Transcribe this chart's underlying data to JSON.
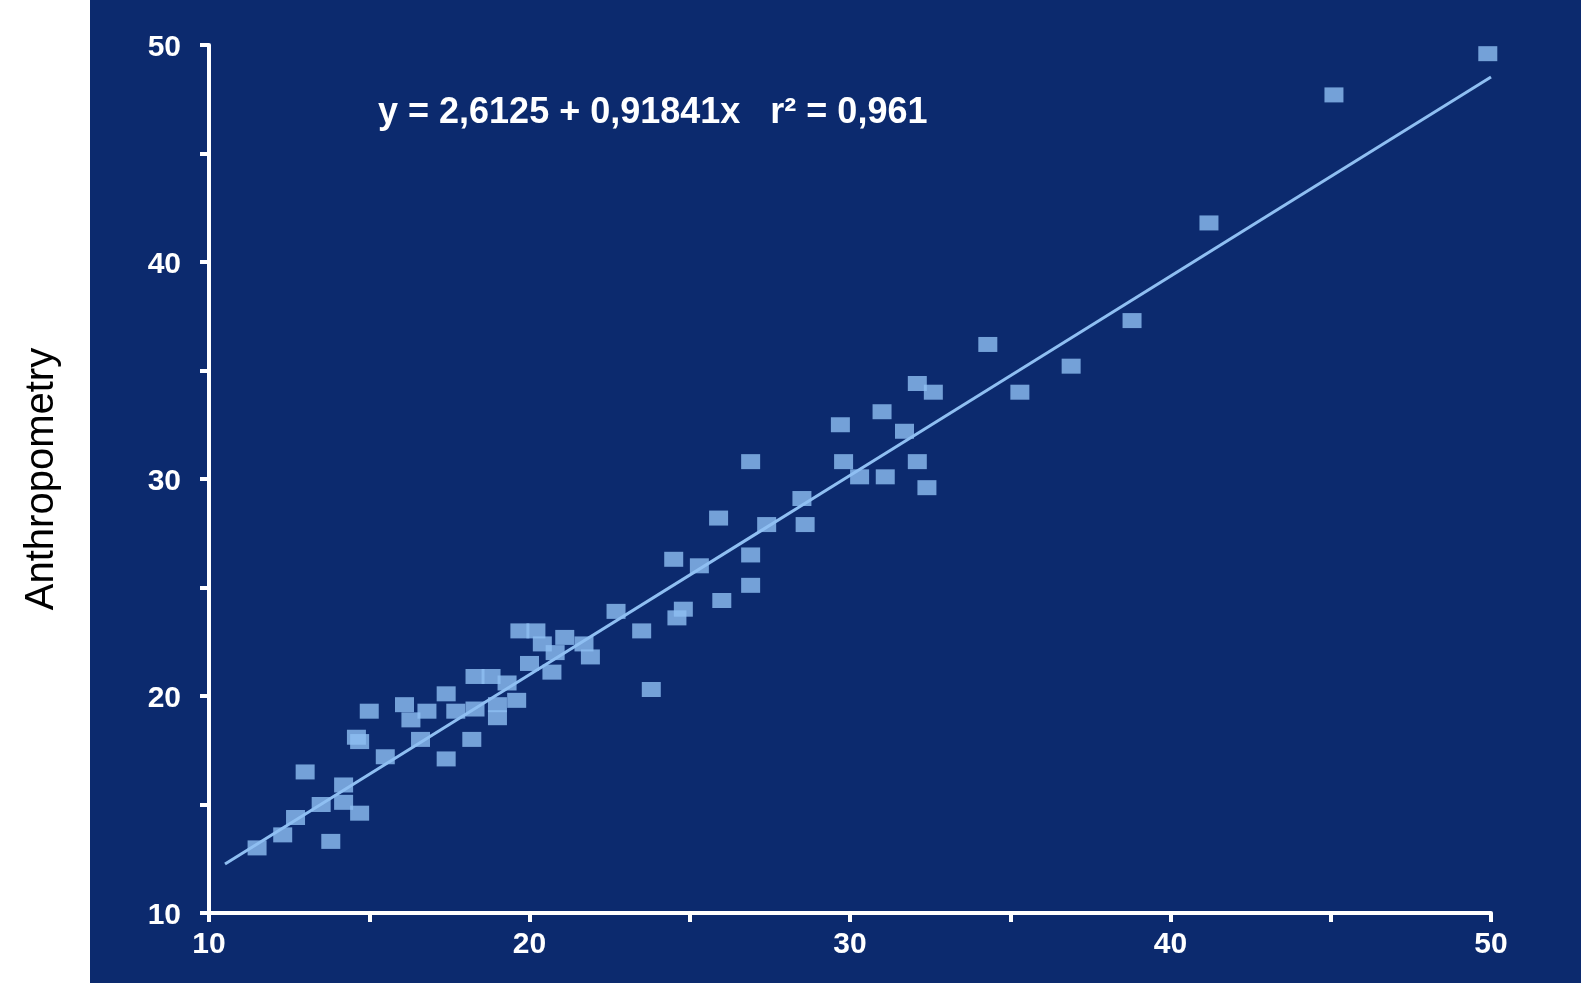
{
  "chart_data": {
    "type": "scatter",
    "ylabel": "Anthropometry",
    "marker": "square",
    "grid": false,
    "annotations": [
      "y = 2,6125 + 0,91841x   r² = 0,961"
    ],
    "xlim": [
      10,
      50
    ],
    "xticks": [
      10,
      {
        "value": 15,
        "label": null
      },
      20,
      {
        "value": 25,
        "label": null
      },
      30,
      {
        "value": 35,
        "label": null
      },
      40,
      {
        "value": 45,
        "label": null
      },
      50
    ],
    "ylim": [
      10,
      50
    ],
    "yticks": [
      10,
      {
        "value": 15,
        "label": null
      },
      20,
      {
        "value": 25,
        "label": null
      },
      30,
      {
        "value": 35,
        "label": null
      },
      40,
      {
        "value": 45,
        "label": null
      },
      50
    ],
    "series": [
      {
        "color": "#8fbff2",
        "x": [
          11.5,
          12.3,
          12.7,
          13.0,
          13.5,
          13.8,
          14.2,
          14.2,
          14.6,
          14.7,
          14.7,
          15.0,
          15.5,
          16.1,
          16.3,
          16.6,
          16.8,
          17.4,
          17.4,
          17.7,
          18.2,
          18.3,
          18.3,
          18.8,
          19.0,
          19.0,
          19.3,
          19.6,
          19.7,
          20.0,
          20.2,
          20.4,
          20.7,
          20.8,
          21.1,
          21.7,
          21.9,
          22.7,
          23.5,
          23.8,
          24.5,
          24.6,
          24.8,
          25.3,
          25.9,
          26.0,
          26.9,
          26.9,
          26.9,
          27.4,
          28.5,
          28.6,
          29.7,
          29.8,
          30.3,
          31.0,
          31.1,
          31.7,
          32.1,
          32.1,
          32.4,
          32.6,
          34.3,
          35.3,
          36.9,
          38.8,
          41.2,
          45.1,
          49.9
        ],
        "values": [
          13.0,
          13.6,
          14.4,
          16.5,
          15.0,
          13.3,
          15.1,
          15.9,
          18.1,
          14.6,
          17.9,
          19.3,
          17.2,
          19.6,
          18.9,
          18.0,
          19.3,
          20.1,
          17.1,
          19.3,
          18.0,
          20.9,
          19.4,
          20.9,
          19.6,
          19.0,
          20.6,
          19.8,
          23.0,
          21.5,
          23.0,
          22.4,
          21.1,
          22.0,
          22.7,
          22.4,
          21.8,
          23.9,
          23.0,
          20.3,
          26.3,
          23.6,
          24.0,
          26.0,
          28.2,
          24.4,
          30.8,
          26.5,
          25.1,
          27.9,
          29.1,
          27.9,
          32.5,
          30.8,
          30.1,
          33.1,
          30.1,
          32.2,
          34.4,
          30.8,
          29.6,
          34.0,
          36.2,
          34.0,
          35.2,
          37.3,
          41.8,
          47.7,
          49.6
        ]
      },
      {
        "type": "line",
        "marker": "none",
        "color": "#8fbff2",
        "x": [
          10.5,
          50
        ],
        "values": [
          12.26,
          48.53
        ]
      }
    ]
  }
}
